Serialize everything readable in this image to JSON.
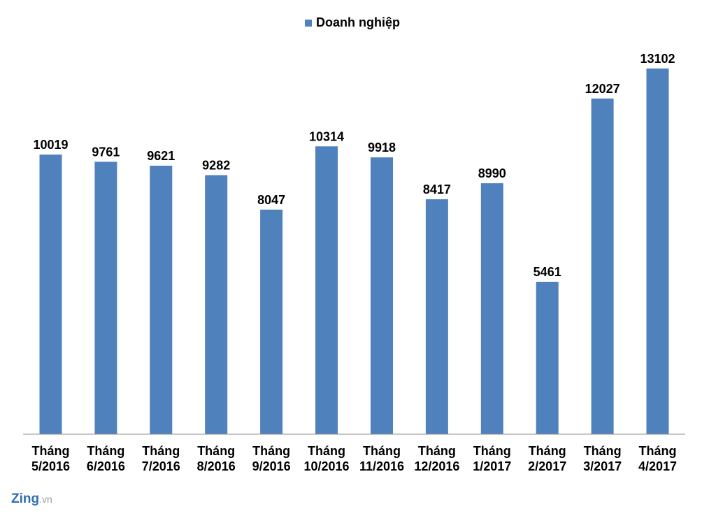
{
  "chart_data": {
    "type": "bar",
    "categories": [
      [
        "Tháng",
        "5/2016"
      ],
      [
        "Tháng",
        "6/2016"
      ],
      [
        "Tháng",
        "7/2016"
      ],
      [
        "Tháng",
        "8/2016"
      ],
      [
        "Tháng",
        "9/2016"
      ],
      [
        "Tháng",
        "10/2016"
      ],
      [
        "Tháng",
        "11/2016"
      ],
      [
        "Tháng",
        "12/2016"
      ],
      [
        "Tháng",
        "1/2017"
      ],
      [
        "Tháng",
        "2/2017"
      ],
      [
        "Tháng",
        "3/2017"
      ],
      [
        "Tháng",
        "4/2017"
      ]
    ],
    "series": [
      {
        "name": "Doanh nghiệp",
        "values": [
          10019,
          9761,
          9621,
          9282,
          8047,
          10314,
          9918,
          8417,
          8990,
          5461,
          12027,
          13102
        ]
      }
    ],
    "ylim": [
      0,
      14000
    ],
    "legend_position": "top-center",
    "grid": false,
    "bar_color": "#4f81bd"
  },
  "watermark": {
    "brand": "Zing",
    "suffix": ".vn"
  }
}
